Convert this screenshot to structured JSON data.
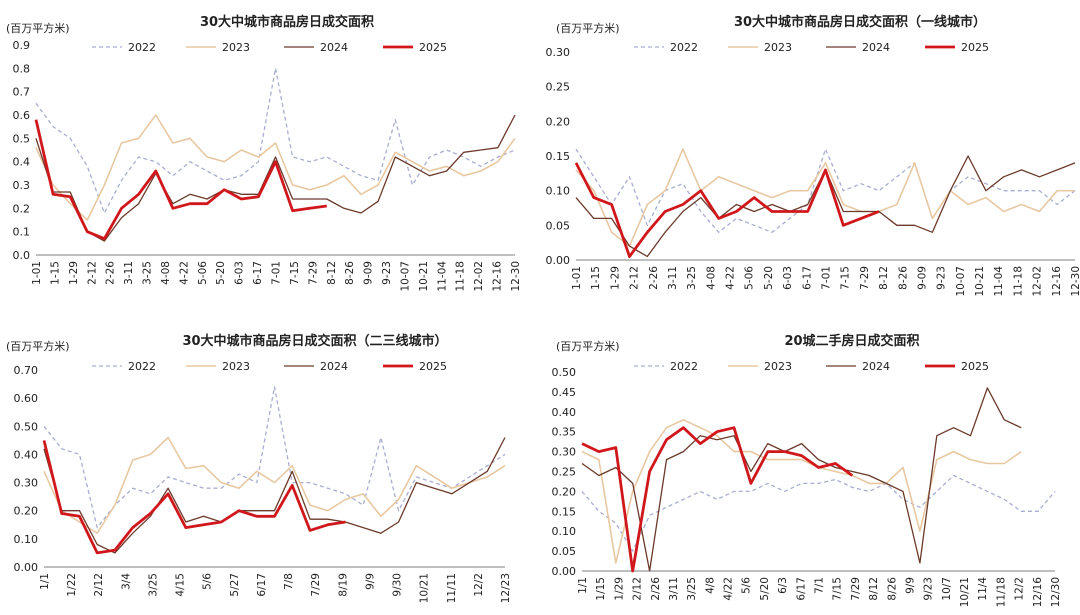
{
  "series_style": {
    "2022": {
      "color": "#a9aed0",
      "dash": "4,3",
      "width": 1.3
    },
    "2023": {
      "color": "#e8c8a2",
      "dash": "",
      "width": 1.6
    },
    "2024": {
      "color": "#6b3a2a",
      "dash": "",
      "width": 1.3
    },
    "2025": {
      "color": "#d0181c",
      "dash": "",
      "width": 2.8
    }
  },
  "chart_data": [
    {
      "type": "line",
      "title": "30大中城市商品房日成交面积",
      "unit": "(百万平方米)",
      "ylim": [
        0,
        0.9
      ],
      "yticks": [
        "0.0",
        "0.1",
        "0.2",
        "0.3",
        "0.4",
        "0.5",
        "0.6",
        "0.7",
        "0.8",
        "0.9"
      ],
      "xlabels": [
        "1-01",
        "1-15",
        "1-29",
        "2-12",
        "2-26",
        "3-11",
        "3-25",
        "4-08",
        "4-22",
        "5-06",
        "5-20",
        "6-03",
        "6-17",
        "7-01",
        "7-15",
        "7-29",
        "8-12",
        "8-26",
        "9-09",
        "9-23",
        "10-07",
        "10-21",
        "11-04",
        "11-18",
        "12-02",
        "12-16",
        "12-30"
      ],
      "legend": [
        "2022",
        "2023",
        "2024",
        "2025"
      ],
      "series": [
        {
          "name": "2022",
          "values": [
            0.65,
            0.55,
            0.5,
            0.38,
            0.18,
            0.32,
            0.42,
            0.4,
            0.34,
            0.4,
            0.36,
            0.32,
            0.34,
            0.4,
            0.8,
            0.42,
            0.4,
            0.42,
            0.38,
            0.34,
            0.32,
            0.58,
            0.3,
            0.42,
            0.45,
            0.42,
            0.38,
            0.42,
            0.45
          ]
        },
        {
          "name": "2023",
          "values": [
            0.46,
            0.3,
            0.22,
            0.15,
            0.3,
            0.48,
            0.5,
            0.6,
            0.48,
            0.5,
            0.42,
            0.4,
            0.45,
            0.42,
            0.48,
            0.3,
            0.28,
            0.3,
            0.34,
            0.26,
            0.3,
            0.44,
            0.4,
            0.36,
            0.38,
            0.34,
            0.36,
            0.4,
            0.5
          ]
        },
        {
          "name": "2024",
          "values": [
            0.5,
            0.27,
            0.27,
            0.1,
            0.06,
            0.16,
            0.22,
            0.35,
            0.22,
            0.26,
            0.24,
            0.28,
            0.26,
            0.26,
            0.42,
            0.24,
            0.24,
            0.24,
            0.2,
            0.18,
            0.23,
            0.42,
            0.38,
            0.34,
            0.36,
            0.44,
            0.45,
            0.46,
            0.6
          ]
        },
        {
          "name": "2025",
          "values": [
            0.58,
            0.26,
            0.25,
            0.1,
            0.07,
            0.2,
            0.26,
            0.36,
            0.2,
            0.22,
            0.22,
            0.28,
            0.24,
            0.25,
            0.4,
            0.19,
            0.2,
            0.21
          ]
        }
      ]
    },
    {
      "type": "line",
      "title": "30大中城市商品房日成交面积（一线城市）",
      "unit": "(百万平方米)",
      "ylim": [
        0,
        0.3
      ],
      "yticks": [
        "0.00",
        "0.05",
        "0.10",
        "0.15",
        "0.20",
        "0.25",
        "0.30"
      ],
      "xlabels": [
        "1-01",
        "1-15",
        "1-29",
        "2-12",
        "2-26",
        "3-11",
        "3-25",
        "4-08",
        "4-22",
        "5-06",
        "5-20",
        "6-03",
        "6-17",
        "7-01",
        "7-15",
        "7-29",
        "8-12",
        "8-26",
        "9-09",
        "9-23",
        "10-07",
        "10-21",
        "11-04",
        "11-18",
        "12-02",
        "12-16",
        "12-30"
      ],
      "legend": [
        "2022",
        "2023",
        "2024",
        "2025"
      ],
      "series": [
        {
          "name": "2022",
          "values": [
            0.16,
            0.12,
            0.08,
            0.12,
            0.05,
            0.1,
            0.11,
            0.07,
            0.04,
            0.06,
            0.05,
            0.04,
            0.06,
            0.08,
            0.16,
            0.1,
            0.11,
            0.1,
            0.12,
            0.14,
            0.06,
            0.1,
            0.12,
            0.11,
            0.1,
            0.1,
            0.1,
            0.08,
            0.1
          ]
        },
        {
          "name": "2023",
          "values": [
            0.13,
            0.1,
            0.04,
            0.02,
            0.08,
            0.1,
            0.16,
            0.1,
            0.12,
            0.11,
            0.1,
            0.09,
            0.1,
            0.1,
            0.14,
            0.08,
            0.07,
            0.07,
            0.08,
            0.14,
            0.06,
            0.1,
            0.08,
            0.09,
            0.07,
            0.08,
            0.07,
            0.1,
            0.1
          ]
        },
        {
          "name": "2024",
          "values": [
            0.09,
            0.06,
            0.06,
            0.02,
            0.005,
            0.04,
            0.07,
            0.09,
            0.06,
            0.08,
            0.07,
            0.08,
            0.07,
            0.08,
            0.13,
            0.07,
            0.07,
            0.07,
            0.05,
            0.05,
            0.04,
            0.1,
            0.15,
            0.1,
            0.12,
            0.13,
            0.12,
            0.13,
            0.14
          ]
        },
        {
          "name": "2025",
          "values": [
            0.14,
            0.09,
            0.08,
            0.005,
            0.04,
            0.07,
            0.08,
            0.1,
            0.06,
            0.07,
            0.09,
            0.07,
            0.07,
            0.07,
            0.13,
            0.05,
            0.06,
            0.07
          ]
        }
      ]
    },
    {
      "type": "line",
      "title": "30大中城市商品房日成交面积（二三线城市）",
      "unit": "(百万平方米)",
      "ylim": [
        0,
        0.7
      ],
      "yticks": [
        "0.00",
        "0.10",
        "0.20",
        "0.30",
        "0.40",
        "0.50",
        "0.60",
        "0.70"
      ],
      "xlabels": [
        "1/1",
        "1/22",
        "2/12",
        "3/4",
        "3/25",
        "4/15",
        "5/6",
        "5/27",
        "6/17",
        "7/8",
        "7/29",
        "8/19",
        "9/9",
        "9/30",
        "10/21",
        "11/11",
        "12/2",
        "12/23"
      ],
      "legend": [
        "2022",
        "2023",
        "2024",
        "2025"
      ],
      "series": [
        {
          "name": "2022",
          "values": [
            0.5,
            0.42,
            0.4,
            0.14,
            0.22,
            0.28,
            0.26,
            0.32,
            0.3,
            0.28,
            0.28,
            0.33,
            0.3,
            0.64,
            0.3,
            0.3,
            0.28,
            0.26,
            0.22,
            0.46,
            0.2,
            0.32,
            0.3,
            0.28,
            0.32,
            0.36,
            0.4
          ]
        },
        {
          "name": "2023",
          "values": [
            0.34,
            0.2,
            0.16,
            0.12,
            0.22,
            0.38,
            0.4,
            0.46,
            0.35,
            0.36,
            0.3,
            0.28,
            0.34,
            0.3,
            0.36,
            0.22,
            0.2,
            0.24,
            0.26,
            0.18,
            0.24,
            0.36,
            0.32,
            0.28,
            0.3,
            0.32,
            0.36
          ]
        },
        {
          "name": "2024",
          "values": [
            0.42,
            0.2,
            0.2,
            0.08,
            0.05,
            0.12,
            0.18,
            0.28,
            0.16,
            0.18,
            0.16,
            0.2,
            0.2,
            0.2,
            0.34,
            0.17,
            0.17,
            0.16,
            0.14,
            0.12,
            0.16,
            0.3,
            0.28,
            0.26,
            0.3,
            0.34,
            0.46
          ]
        },
        {
          "name": "2025",
          "values": [
            0.45,
            0.19,
            0.18,
            0.05,
            0.06,
            0.14,
            0.19,
            0.26,
            0.14,
            0.15,
            0.16,
            0.2,
            0.18,
            0.18,
            0.29,
            0.13,
            0.15,
            0.16
          ]
        }
      ]
    },
    {
      "type": "line",
      "title": "20城二手房日成交面积",
      "unit": "(百万平方米)",
      "ylim": [
        0,
        0.5
      ],
      "yticks": [
        "0.00",
        "0.05",
        "0.10",
        "0.15",
        "0.20",
        "0.25",
        "0.30",
        "0.35",
        "0.40",
        "0.45",
        "0.50"
      ],
      "xlabels": [
        "1/1",
        "1/15",
        "1/29",
        "2/12",
        "2/26",
        "3/11",
        "3/25",
        "4/8",
        "4/22",
        "5/6",
        "5/20",
        "6/3",
        "6/17",
        "7/1",
        "7/15",
        "7/29",
        "8/12",
        "8/26",
        "9/9",
        "9/23",
        "10/7",
        "10/21",
        "11/4",
        "11/18",
        "12/2",
        "12/16",
        "12/30"
      ],
      "legend": [
        "2022",
        "2023",
        "2024",
        "2025"
      ],
      "series": [
        {
          "name": "2022",
          "values": [
            0.2,
            0.15,
            0.12,
            0.05,
            0.14,
            0.16,
            0.18,
            0.2,
            0.18,
            0.2,
            0.2,
            0.22,
            0.2,
            0.22,
            0.22,
            0.23,
            0.21,
            0.2,
            0.22,
            0.18,
            0.16,
            0.2,
            0.24,
            0.22,
            0.2,
            0.18,
            0.15,
            0.15,
            0.2
          ]
        },
        {
          "name": "2023",
          "values": [
            0.3,
            0.28,
            0.02,
            0.2,
            0.3,
            0.36,
            0.38,
            0.36,
            0.34,
            0.3,
            0.3,
            0.28,
            0.28,
            0.28,
            0.26,
            0.25,
            0.24,
            0.22,
            0.22,
            0.26,
            0.1,
            0.28,
            0.3,
            0.28,
            0.27,
            0.27,
            0.3
          ]
        },
        {
          "name": "2024",
          "values": [
            0.27,
            0.24,
            0.26,
            0.22,
            0.0,
            0.28,
            0.3,
            0.34,
            0.33,
            0.34,
            0.25,
            0.32,
            0.3,
            0.32,
            0.28,
            0.26,
            0.25,
            0.24,
            0.22,
            0.2,
            0.02,
            0.34,
            0.36,
            0.34,
            0.46,
            0.38,
            0.36
          ]
        },
        {
          "name": "2025",
          "values": [
            0.32,
            0.3,
            0.31,
            0.0,
            0.25,
            0.33,
            0.36,
            0.32,
            0.35,
            0.36,
            0.22,
            0.3,
            0.3,
            0.29,
            0.26,
            0.27,
            0.24
          ]
        }
      ]
    }
  ]
}
